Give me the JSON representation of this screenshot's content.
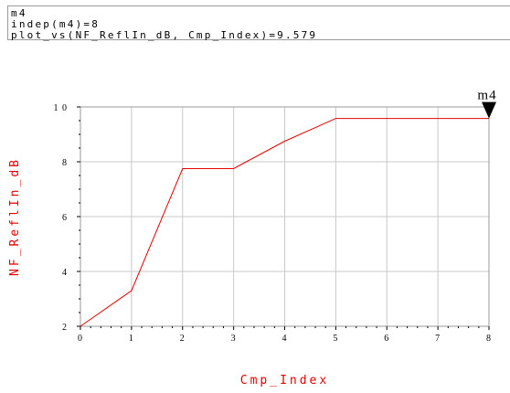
{
  "marker_readout": {
    "name": "m4",
    "line1": "indep(m4)=8",
    "line2": "plot_vs(NF_ReflIn_dB, Cmp_Index)=9.579"
  },
  "chart_data": {
    "type": "line",
    "xlabel": "Cmp_Index",
    "ylabel": "NF_ReflIn_dB",
    "xlim": [
      0,
      8
    ],
    "ylim": [
      2,
      10
    ],
    "x_ticks": [
      0,
      1,
      2,
      3,
      4,
      5,
      6,
      7,
      8
    ],
    "y_ticks": [
      2,
      4,
      6,
      8,
      10
    ],
    "y_tick_labels": [
      "2",
      "4",
      "6",
      "8",
      "1 0"
    ],
    "grid": true,
    "series": [
      {
        "x": [
          0,
          1,
          2,
          3,
          4,
          5,
          6,
          7,
          8
        ],
        "y": [
          2.0,
          3.3,
          7.75,
          7.75,
          8.75,
          9.579,
          9.579,
          9.579,
          9.579
        ]
      }
    ],
    "marker": {
      "name": "m4",
      "x": 8,
      "y": 9.579
    },
    "colors": {
      "series": "#e60000",
      "axis_title": "#e60000",
      "grid": "#c8c8c8",
      "frame": "#9a9a9a"
    }
  }
}
